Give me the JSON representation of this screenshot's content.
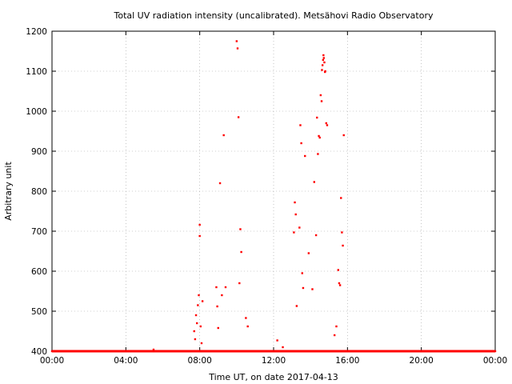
{
  "chart_data": {
    "type": "scatter",
    "title": "Total UV radiation intensity (uncalibrated). Metsähovi Radio Observatory",
    "xlabel": "Time UT, on date 2017-04-13",
    "ylabel": "Arbitrary unit",
    "xlim": [
      0,
      24
    ],
    "ylim": [
      400,
      1200
    ],
    "x_unit": "hours UT",
    "x_tick_values": [
      0,
      4,
      8,
      12,
      16,
      20,
      24
    ],
    "x_tick_labels": [
      "00:00",
      "04:00",
      "08:00",
      "12:00",
      "16:00",
      "20:00",
      "00:00"
    ],
    "y_ticks": [
      400,
      500,
      600,
      700,
      800,
      900,
      1000,
      1100,
      1200
    ],
    "grid": true,
    "marker_color": "#ff0000",
    "series": [
      {
        "x": [
          0.0,
          0.5,
          1.0,
          1.5,
          2.0,
          2.5,
          3.0,
          3.5,
          4.0,
          4.5,
          5.0,
          5.5,
          6.0,
          6.5,
          7.0,
          7.5,
          7.7,
          7.75,
          7.8,
          7.85,
          7.9,
          7.95,
          8.0,
          8.0,
          8.05,
          8.1,
          8.15,
          8.9,
          8.95,
          9.0,
          9.1,
          9.2,
          9.3,
          9.4,
          10.0,
          10.05,
          10.1,
          10.15,
          10.2,
          10.25,
          10.5,
          10.6,
          12.2,
          12.5,
          13.1,
          13.15,
          13.2,
          13.25,
          13.4,
          13.45,
          13.5,
          13.55,
          13.6,
          13.7,
          13.9,
          14.1,
          14.2,
          14.3,
          14.35,
          14.4,
          14.45,
          14.5,
          14.55,
          14.6,
          14.62,
          14.65,
          14.68,
          14.7,
          14.72,
          14.75,
          14.78,
          14.8,
          14.85,
          14.9,
          15.3,
          15.4,
          15.5,
          15.55,
          15.6,
          15.65,
          15.7,
          15.75,
          15.8,
          16.0,
          17.0,
          18.0,
          19.0,
          20.0,
          21.0,
          22.0,
          23.0,
          24.0
        ],
        "y": [
          400,
          400,
          400,
          400,
          400,
          400,
          400,
          400,
          400,
          400,
          400,
          404,
          400,
          400,
          400,
          400,
          450,
          430,
          490,
          470,
          515,
          540,
          716,
          688,
          462,
          420,
          525,
          560,
          512,
          458,
          820,
          540,
          940,
          560,
          1175,
          1157,
          985,
          570,
          705,
          648,
          483,
          462,
          427,
          410,
          697,
          772,
          742,
          513,
          709,
          965,
          920,
          595,
          558,
          888,
          645,
          555,
          823,
          690,
          984,
          893,
          938,
          934,
          1040,
          1025,
          1103,
          1115,
          1128,
          1140,
          1133,
          1122,
          1098,
          1100,
          970,
          965,
          440,
          462,
          603,
          570,
          565,
          783,
          697,
          664,
          940,
          400,
          400,
          400,
          400,
          400,
          400,
          400,
          400,
          400
        ]
      }
    ]
  }
}
